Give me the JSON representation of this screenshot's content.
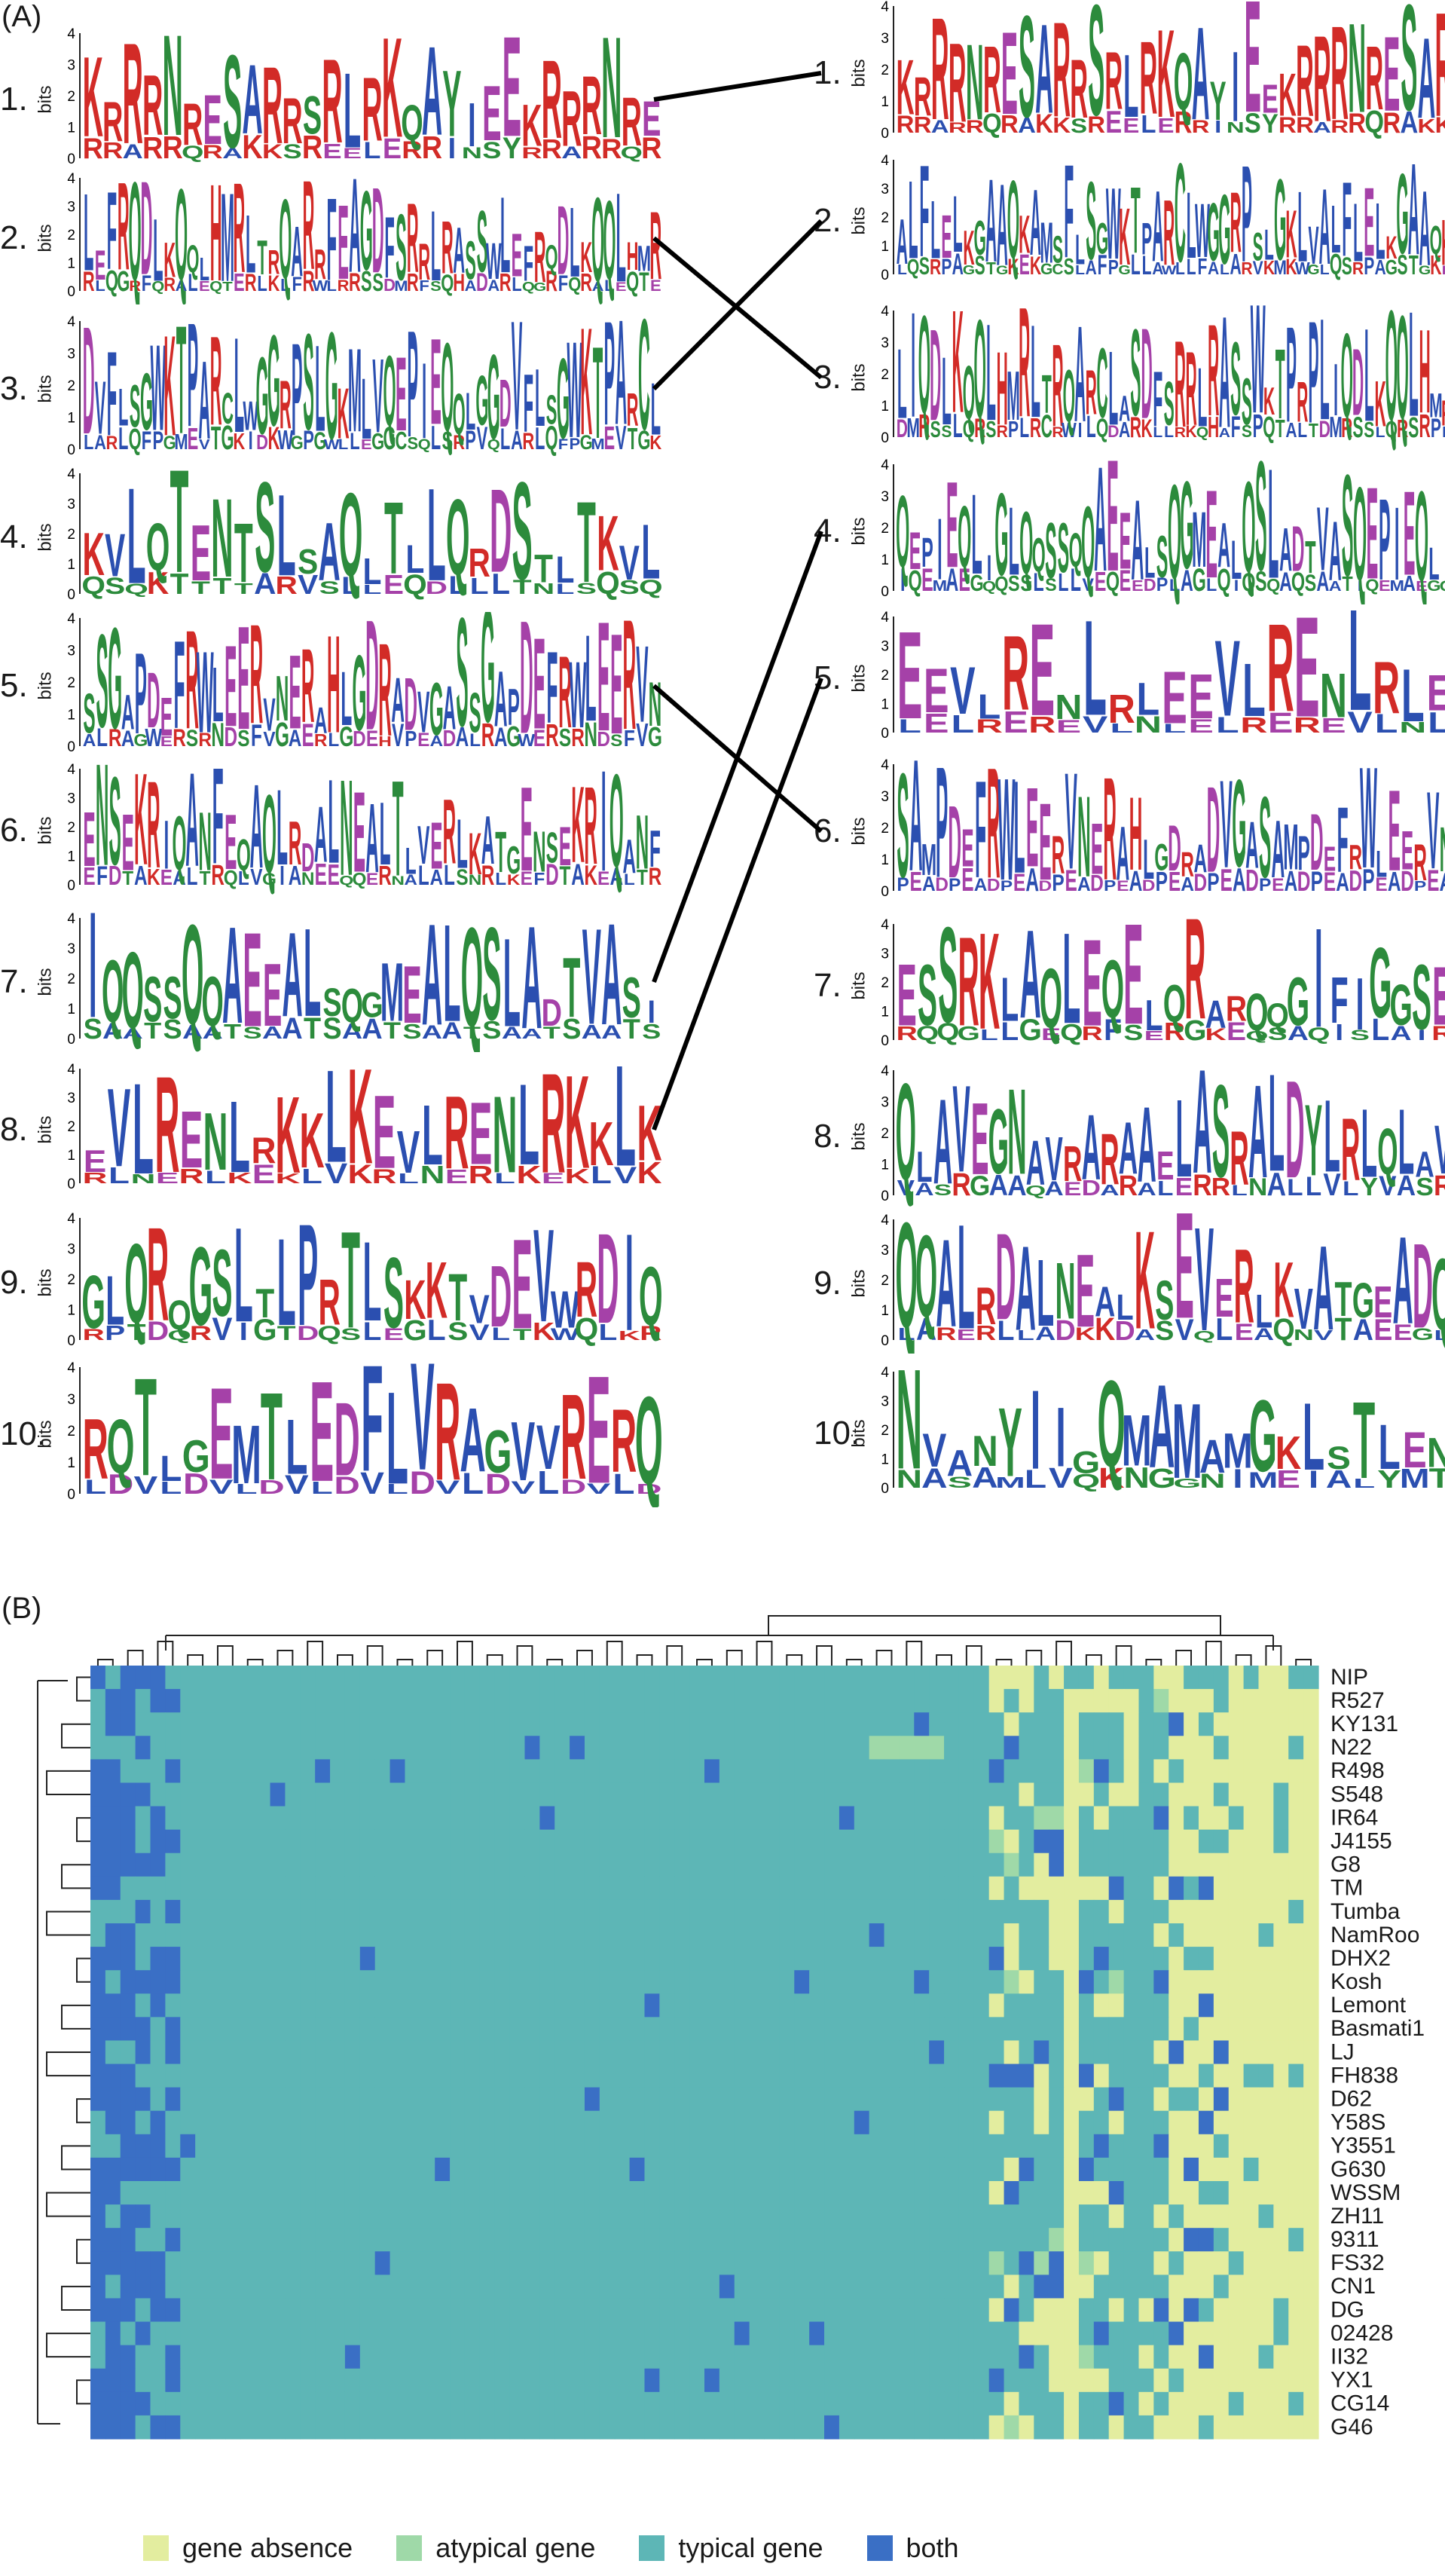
{
  "figure": {
    "panel_a_label": "(A)",
    "panel_b_label": "(B)",
    "axis_title": "bits"
  },
  "colors": {
    "gene_absence": "#e3ed9f",
    "atypical_gene": "#9fd9a8",
    "typical_gene": "#5db6b6",
    "both": "#3a6fc5",
    "residue_red": "#d22b27",
    "residue_green": "#2c8b3c",
    "residue_blue": "#2b4fb0",
    "residue_purple": "#a541a8",
    "residue_orange": "#f39a26",
    "residue_pink": "#f3a9c7",
    "residue_yellow": "#d9e22b",
    "residue_teal": "#36a7a0"
  },
  "motifs_left": [
    {
      "number": "1.",
      "sequence": "KRRRNRESARRSRLRKQAYIEE",
      "positions": 29
    },
    {
      "number": "2.",
      "sequence": "LEFRQDLKQQLHMRLTRQARRFEAGDFSRRLRASSW",
      "positions": 50
    },
    {
      "number": "3.",
      "sequence": "DVFLSGWKTPARCLWGGRPSLGKMLVQEPIEQQLGG",
      "positions": 50
    },
    {
      "number": "4.",
      "sequence": "KVLQTENTSLSAQLTLLQRDSTLT",
      "positions": 27
    },
    {
      "number": "5.",
      "sequence": "SSGAPDEFRWLEERVNERAHLGDRADVGA",
      "positions": 45
    },
    {
      "number": "6.",
      "sequence": "ENSEKRIQANFEQAQLRDALNEALTLVERLKATG",
      "positions": 45
    },
    {
      "number": "7.",
      "sequence": "IQQSSQQAEEALSQGMEALQSLADTVAS",
      "positions": 29
    },
    {
      "number": "8.",
      "sequence": "EVLRENLRKKLK",
      "positions": 24
    },
    {
      "number": "9.",
      "sequence": "GLQRQGSLTLPRTLSKKTVDEVWRDIQ",
      "positions": 27
    },
    {
      "number": "10.",
      "sequence": "RQTLGEMTLEDFLVRAGVVRE",
      "positions": 23
    }
  ],
  "motifs_right": [
    {
      "number": "1.",
      "sequence": "KRRRNRESARRSRLRKQAYIEE",
      "positions": 32
    },
    {
      "number": "2.",
      "sequence": "ALFLELKGAAQKAMSFLSGWKTPARCLWGGRPSLGKLV",
      "positions": 50
    },
    {
      "number": "3.",
      "sequence": "LIQDLKQQLHMRLTRQARCLASDFSRRLRASSWKTPRP",
      "positions": 50
    },
    {
      "number": "4.",
      "sequence": "QEPIEQLIGLQQSSQQAEEALSQGMEALQSLADTVAS",
      "positions": 45
    },
    {
      "number": "5.",
      "sequence": "EEVLRENLRL",
      "positions": 21
    },
    {
      "number": "6.",
      "sequence": "SAMPDEFRWLEERVNERAHLGDRADVGA",
      "positions": 43
    },
    {
      "number": "7.",
      "sequence": "ESSRKLAQLEQELQRARQQGIFIGGS",
      "positions": 27
    },
    {
      "number": "8.",
      "sequence": "QLAVEGNAVRARAAELASRALDYLRL",
      "positions": 30
    },
    {
      "number": "9.",
      "sequence": "QQALRDALNEALKSEVERLKVATGEAD",
      "positions": 28
    },
    {
      "number": "10.",
      "sequence": "NVANYIIGQMAMAMGKLSTLEN",
      "positions": 22
    }
  ],
  "motif_links": [
    [
      1,
      1
    ],
    [
      2,
      3
    ],
    [
      3,
      2
    ],
    [
      5,
      6
    ],
    [
      7,
      4
    ],
    [
      8,
      5
    ]
  ],
  "y_ticks": [
    "4",
    "3",
    "2",
    "1",
    "0"
  ],
  "heatmap": {
    "rows": [
      "NIP",
      "R527",
      "KY131",
      "N22",
      "R498",
      "S548",
      "IR64",
      "J4155",
      "G8",
      "TM",
      "Tumba",
      "NamRoo",
      "DHX2",
      "Kosh",
      "Lemont",
      "Basmati1",
      "LJ",
      "FH838",
      "D62",
      "Y58S",
      "Y3551",
      "G630",
      "WSSM",
      "ZH11",
      "9311",
      "FS32",
      "CN1",
      "DG",
      "02428",
      "II32",
      "YX1",
      "CG14",
      "G46"
    ],
    "num_columns": 82,
    "legend": [
      {
        "key": "gene_absence",
        "label": "gene absence"
      },
      {
        "key": "atypical_gene",
        "label": "atypical gene"
      },
      {
        "key": "typical_gene",
        "label": "typical gene"
      },
      {
        "key": "both",
        "label": "both"
      }
    ]
  }
}
